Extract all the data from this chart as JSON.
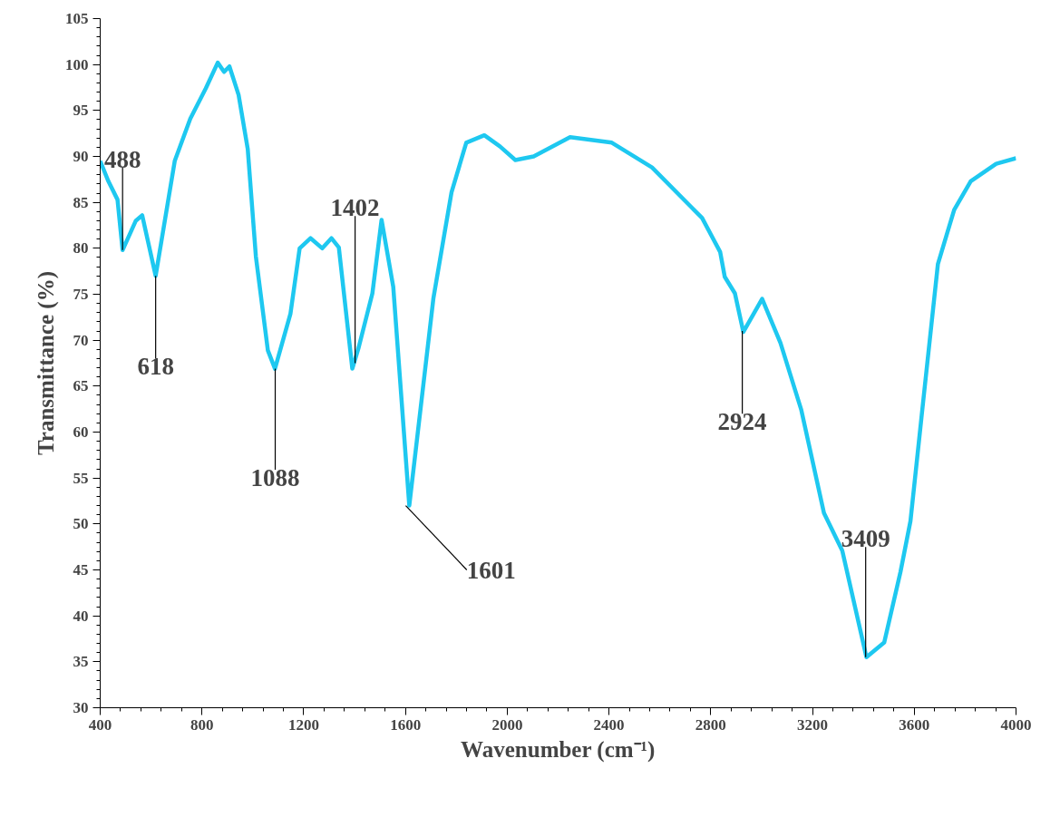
{
  "chart_data": {
    "type": "line",
    "xlabel": "Wavenumber (cm⁻¹)",
    "ylabel": "Transmittance (%)",
    "xlim": [
      400,
      4000
    ],
    "xticks": [
      400,
      800,
      1200,
      1600,
      2000,
      2400,
      2800,
      3200,
      3600,
      4000
    ],
    "ylim": [
      30,
      105
    ],
    "yticks": [
      30,
      35,
      40,
      45,
      50,
      55,
      60,
      65,
      70,
      75,
      80,
      85,
      90,
      95,
      100,
      105
    ],
    "grid": false,
    "marker": "none",
    "line_style": "solid",
    "series": [
      {
        "color": "#1ec8f0",
        "x": [
          400,
          432,
          468,
          488,
          540,
          565,
          618,
          693,
          754,
          815,
          862,
          887,
          908,
          944,
          980,
          1012,
          1059,
          1087,
          1148,
          1184,
          1227,
          1273,
          1309,
          1338,
          1391,
          1416,
          1470,
          1506,
          1552,
          1615,
          1710,
          1781,
          1839,
          1910,
          1971,
          2032,
          2104,
          2247,
          2411,
          2569,
          2723,
          2766,
          2837,
          2855,
          2895,
          2928,
          3002,
          3074,
          3156,
          3245,
          3317,
          3412,
          3482,
          3546,
          3585,
          3628,
          3693,
          3757,
          3822,
          3922,
          4000
        ],
        "values": [
          89.5,
          87.3,
          85.3,
          79.8,
          83.0,
          83.6,
          77.0,
          89.5,
          94.1,
          97.4,
          100.2,
          99.2,
          99.8,
          96.7,
          90.8,
          79.1,
          68.9,
          66.9,
          72.9,
          80.0,
          81.1,
          80.0,
          81.1,
          80.1,
          66.9,
          69.2,
          75.1,
          83.1,
          75.8,
          52.0,
          74.6,
          86.1,
          91.5,
          92.3,
          91.1,
          89.6,
          90.0,
          92.1,
          91.5,
          88.8,
          84.5,
          83.3,
          79.6,
          76.9,
          75.1,
          70.9,
          74.5,
          69.7,
          62.4,
          51.2,
          47.1,
          35.5,
          37.1,
          44.8,
          50.3,
          61.5,
          78.3,
          84.2,
          87.3,
          89.2,
          89.8
        ]
      }
    ],
    "annotations": [
      {
        "text": "488",
        "x": 488,
        "y": 79.8
      },
      {
        "text": "618",
        "x": 618,
        "y": 77.0
      },
      {
        "text": "1088",
        "x": 1088,
        "y": 66.9
      },
      {
        "text": "1402",
        "x": 1402,
        "y": 67.5
      },
      {
        "text": "1601",
        "x": 1601,
        "y": 52.0
      },
      {
        "text": "2924",
        "x": 2924,
        "y": 71.0
      },
      {
        "text": "3409",
        "x": 3409,
        "y": 35.5
      }
    ]
  }
}
